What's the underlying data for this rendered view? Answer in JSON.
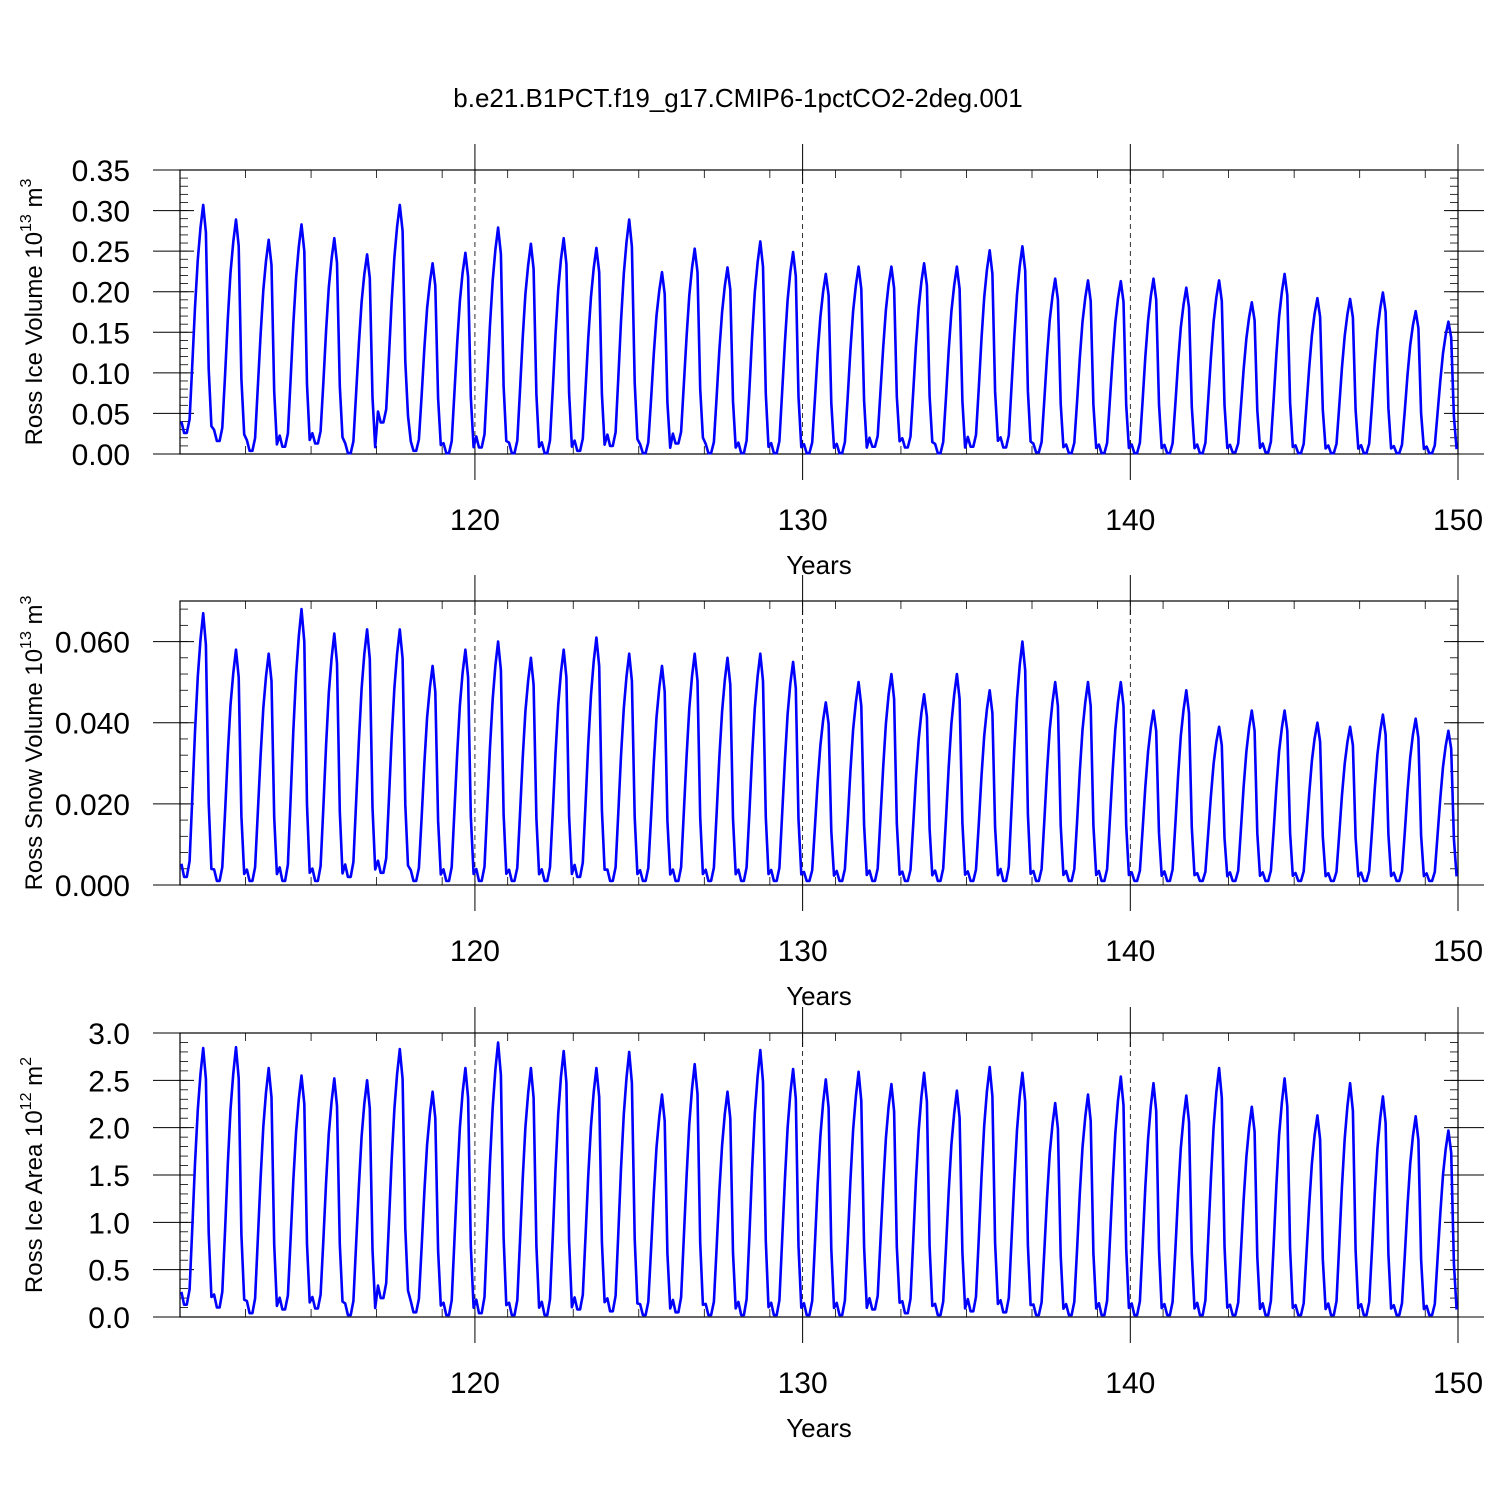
{
  "chart_title": "b.e21.B1PCT.f19_g17.CMIP6-1pctCO2-2deg.001",
  "chart_data": [
    {
      "type": "line",
      "xlabel": "Years",
      "ylabel_main": "Ross Ice Volume 10",
      "ylabel_exp": "13",
      "ylabel_unit": " m",
      "ylabel_unit_exp": "3",
      "xlim": [
        111,
        150
      ],
      "ylim": [
        0,
        0.35
      ],
      "xticks": [
        "120",
        "130",
        "140",
        "150"
      ],
      "yticks": [
        "0.00",
        "0.05",
        "0.10",
        "0.15",
        "0.20",
        "0.25",
        "0.30",
        "0.35"
      ],
      "color": "#0000ff",
      "series_shape": "seasonal cycle, monthly values",
      "annual_max": [
        0.307,
        0.289,
        0.264,
        0.283,
        0.266,
        0.246,
        0.307,
        0.235,
        0.248,
        0.279,
        0.259,
        0.266,
        0.254,
        0.289,
        0.224,
        0.253,
        0.23,
        0.262,
        0.249,
        0.222,
        0.231,
        0.231,
        0.235,
        0.231,
        0.251,
        0.256,
        0.216,
        0.214,
        0.213,
        0.216,
        0.205,
        0.214,
        0.187,
        0.222,
        0.192,
        0.191,
        0.199,
        0.176,
        0.163
      ],
      "annual_min": [
        0.026,
        0.016,
        0.004,
        0.009,
        0.013,
        0.001,
        0.039,
        0.004,
        0.001,
        0.008,
        0.001,
        0.001,
        0.004,
        0.01,
        0.001,
        0.013,
        0.001,
        0.001,
        0.001,
        0.001,
        0.001,
        0.009,
        0.008,
        0.001,
        0.009,
        0.008,
        0.002,
        0.001,
        0.001,
        0.001,
        0.001,
        0.001,
        0.002,
        0.002,
        0.001,
        0.001,
        0.001,
        0.001,
        0.001
      ]
    },
    {
      "type": "line",
      "xlabel": "Years",
      "ylabel_main": "Ross Snow Volume 10",
      "ylabel_exp": "13",
      "ylabel_unit": " m",
      "ylabel_unit_exp": "3",
      "xlim": [
        111,
        150
      ],
      "ylim": [
        0,
        0.07
      ],
      "xticks": [
        "120",
        "130",
        "140",
        "150"
      ],
      "yticks": [
        "0.000",
        "0.020",
        "0.040",
        "0.060"
      ],
      "color": "#0000ff",
      "series_shape": "seasonal cycle, monthly values",
      "annual_max": [
        0.067,
        0.058,
        0.057,
        0.068,
        0.062,
        0.063,
        0.063,
        0.054,
        0.058,
        0.06,
        0.056,
        0.058,
        0.061,
        0.057,
        0.054,
        0.057,
        0.056,
        0.057,
        0.055,
        0.045,
        0.05,
        0.052,
        0.047,
        0.052,
        0.048,
        0.06,
        0.05,
        0.05,
        0.05,
        0.043,
        0.048,
        0.039,
        0.043,
        0.043,
        0.04,
        0.039,
        0.042,
        0.041,
        0.038
      ],
      "annual_min": [
        0.002,
        0.001,
        0.001,
        0.001,
        0.001,
        0.002,
        0.003,
        0.001,
        0.001,
        0.001,
        0.001,
        0.001,
        0.002,
        0.001,
        0.001,
        0.001,
        0.001,
        0.001,
        0.001,
        0.001,
        0.001,
        0.001,
        0.001,
        0.001,
        0.001,
        0.001,
        0.001,
        0.001,
        0.001,
        0.001,
        0.001,
        0.001,
        0.001,
        0.001,
        0.001,
        0.001,
        0.001,
        0.001,
        0.001
      ]
    },
    {
      "type": "line",
      "xlabel": "Years",
      "ylabel_main": "Ross Ice Area 10",
      "ylabel_exp": "12",
      "ylabel_unit": " m",
      "ylabel_unit_exp": "2",
      "xlim": [
        111,
        150
      ],
      "ylim": [
        0,
        3.0
      ],
      "xticks": [
        "120",
        "130",
        "140",
        "150"
      ],
      "yticks": [
        "0.0",
        "0.5",
        "1.0",
        "1.5",
        "2.0",
        "2.5",
        "3.0"
      ],
      "color": "#0000ff",
      "series_shape": "seasonal cycle, monthly values",
      "annual_max": [
        2.84,
        2.85,
        2.63,
        2.55,
        2.52,
        2.5,
        2.83,
        2.38,
        2.63,
        2.9,
        2.63,
        2.81,
        2.63,
        2.8,
        2.35,
        2.67,
        2.38,
        2.82,
        2.62,
        2.51,
        2.59,
        2.46,
        2.58,
        2.39,
        2.64,
        2.58,
        2.26,
        2.35,
        2.54,
        2.47,
        2.34,
        2.63,
        2.22,
        2.52,
        2.13,
        2.47,
        2.33,
        2.12,
        1.97
      ],
      "annual_min": [
        0.13,
        0.1,
        0.04,
        0.08,
        0.09,
        0.02,
        0.2,
        0.05,
        0.02,
        0.04,
        0.02,
        0.02,
        0.08,
        0.06,
        0.02,
        0.05,
        0.02,
        0.02,
        0.02,
        0.02,
        0.02,
        0.08,
        0.04,
        0.02,
        0.06,
        0.05,
        0.02,
        0.02,
        0.02,
        0.02,
        0.02,
        0.02,
        0.02,
        0.02,
        0.02,
        0.02,
        0.02,
        0.02,
        0.02
      ]
    }
  ]
}
